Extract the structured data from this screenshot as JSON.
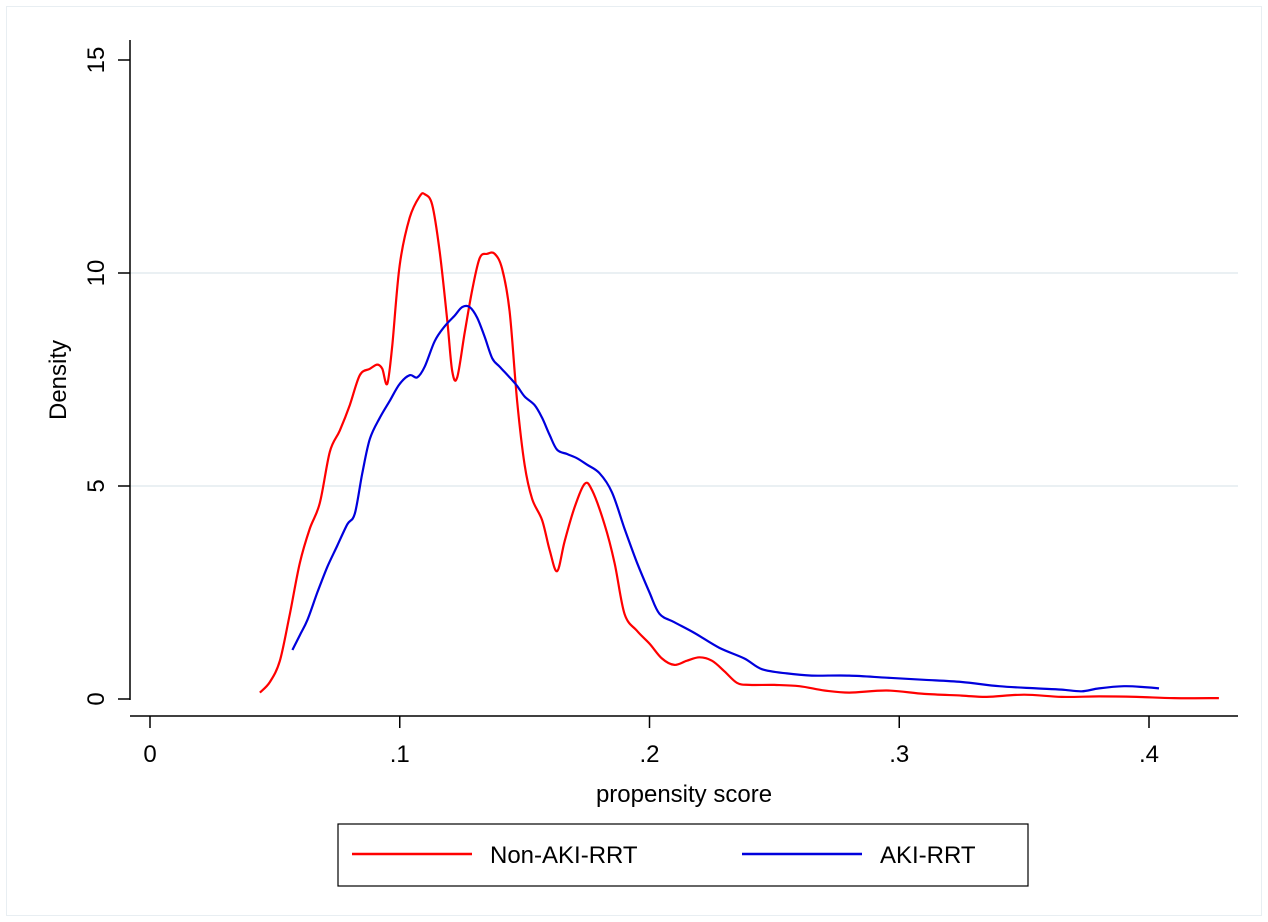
{
  "chart_data": {
    "type": "line",
    "title": "",
    "xlabel": "propensity score",
    "ylabel": "Density",
    "xlim": [
      0,
      0.43
    ],
    "ylim": [
      0,
      15
    ],
    "x_ticks": [
      0,
      0.1,
      0.2,
      0.3,
      0.4
    ],
    "x_tick_labels": [
      "0",
      ".1",
      ".2",
      ".3",
      ".4"
    ],
    "y_ticks": [
      0,
      5,
      10,
      15
    ],
    "y_tick_labels": [
      "0",
      "5",
      "10",
      "15"
    ],
    "grid": true,
    "legend_position": "bottom",
    "series": [
      {
        "name": "Non-AKI-RRT",
        "color": "#ff0000",
        "points": [
          [
            0.044,
            0.15
          ],
          [
            0.048,
            0.4
          ],
          [
            0.052,
            0.9
          ],
          [
            0.056,
            2.0
          ],
          [
            0.06,
            3.2
          ],
          [
            0.064,
            4.0
          ],
          [
            0.068,
            4.6
          ],
          [
            0.072,
            5.8
          ],
          [
            0.076,
            6.3
          ],
          [
            0.08,
            6.9
          ],
          [
            0.084,
            7.6
          ],
          [
            0.088,
            7.75
          ],
          [
            0.091,
            7.85
          ],
          [
            0.093,
            7.75
          ],
          [
            0.095,
            7.4
          ],
          [
            0.097,
            8.3
          ],
          [
            0.1,
            10.2
          ],
          [
            0.104,
            11.3
          ],
          [
            0.108,
            11.8
          ],
          [
            0.11,
            11.85
          ],
          [
            0.113,
            11.6
          ],
          [
            0.116,
            10.5
          ],
          [
            0.119,
            8.9
          ],
          [
            0.121,
            7.7
          ],
          [
            0.123,
            7.55
          ],
          [
            0.126,
            8.6
          ],
          [
            0.129,
            9.6
          ],
          [
            0.132,
            10.35
          ],
          [
            0.135,
            10.45
          ],
          [
            0.138,
            10.45
          ],
          [
            0.141,
            10.1
          ],
          [
            0.144,
            9.1
          ],
          [
            0.147,
            7.0
          ],
          [
            0.15,
            5.5
          ],
          [
            0.153,
            4.7
          ],
          [
            0.157,
            4.2
          ],
          [
            0.16,
            3.5
          ],
          [
            0.163,
            3.0
          ],
          [
            0.166,
            3.7
          ],
          [
            0.17,
            4.5
          ],
          [
            0.174,
            5.05
          ],
          [
            0.177,
            4.9
          ],
          [
            0.182,
            4.1
          ],
          [
            0.186,
            3.2
          ],
          [
            0.19,
            2.0
          ],
          [
            0.195,
            1.6
          ],
          [
            0.2,
            1.3
          ],
          [
            0.205,
            0.95
          ],
          [
            0.21,
            0.8
          ],
          [
            0.215,
            0.9
          ],
          [
            0.22,
            0.98
          ],
          [
            0.225,
            0.9
          ],
          [
            0.23,
            0.65
          ],
          [
            0.235,
            0.38
          ],
          [
            0.24,
            0.33
          ],
          [
            0.25,
            0.33
          ],
          [
            0.26,
            0.3
          ],
          [
            0.27,
            0.2
          ],
          [
            0.28,
            0.15
          ],
          [
            0.295,
            0.2
          ],
          [
            0.31,
            0.12
          ],
          [
            0.325,
            0.08
          ],
          [
            0.335,
            0.05
          ],
          [
            0.35,
            0.1
          ],
          [
            0.365,
            0.05
          ],
          [
            0.38,
            0.06
          ],
          [
            0.395,
            0.05
          ],
          [
            0.41,
            0.02
          ],
          [
            0.428,
            0.02
          ]
        ]
      },
      {
        "name": "AKI-RRT",
        "color": "#0000dd",
        "points": [
          [
            0.057,
            1.15
          ],
          [
            0.06,
            1.5
          ],
          [
            0.063,
            1.85
          ],
          [
            0.067,
            2.5
          ],
          [
            0.071,
            3.1
          ],
          [
            0.075,
            3.6
          ],
          [
            0.079,
            4.1
          ],
          [
            0.082,
            4.35
          ],
          [
            0.085,
            5.3
          ],
          [
            0.088,
            6.1
          ],
          [
            0.092,
            6.6
          ],
          [
            0.096,
            7.0
          ],
          [
            0.1,
            7.4
          ],
          [
            0.104,
            7.6
          ],
          [
            0.107,
            7.55
          ],
          [
            0.11,
            7.8
          ],
          [
            0.114,
            8.4
          ],
          [
            0.118,
            8.75
          ],
          [
            0.122,
            9.0
          ],
          [
            0.125,
            9.2
          ],
          [
            0.128,
            9.2
          ],
          [
            0.131,
            8.95
          ],
          [
            0.134,
            8.5
          ],
          [
            0.137,
            8.0
          ],
          [
            0.14,
            7.8
          ],
          [
            0.144,
            7.55
          ],
          [
            0.147,
            7.35
          ],
          [
            0.15,
            7.1
          ],
          [
            0.154,
            6.9
          ],
          [
            0.157,
            6.6
          ],
          [
            0.16,
            6.2
          ],
          [
            0.163,
            5.85
          ],
          [
            0.167,
            5.75
          ],
          [
            0.171,
            5.65
          ],
          [
            0.175,
            5.5
          ],
          [
            0.18,
            5.3
          ],
          [
            0.185,
            4.85
          ],
          [
            0.19,
            4.0
          ],
          [
            0.195,
            3.2
          ],
          [
            0.2,
            2.5
          ],
          [
            0.204,
            2.0
          ],
          [
            0.21,
            1.8
          ],
          [
            0.218,
            1.55
          ],
          [
            0.228,
            1.2
          ],
          [
            0.238,
            0.95
          ],
          [
            0.245,
            0.7
          ],
          [
            0.255,
            0.6
          ],
          [
            0.265,
            0.55
          ],
          [
            0.28,
            0.55
          ],
          [
            0.295,
            0.5
          ],
          [
            0.31,
            0.45
          ],
          [
            0.325,
            0.4
          ],
          [
            0.34,
            0.3
          ],
          [
            0.355,
            0.25
          ],
          [
            0.365,
            0.22
          ],
          [
            0.373,
            0.18
          ],
          [
            0.38,
            0.25
          ],
          [
            0.39,
            0.3
          ],
          [
            0.398,
            0.28
          ],
          [
            0.404,
            0.25
          ]
        ]
      }
    ]
  }
}
